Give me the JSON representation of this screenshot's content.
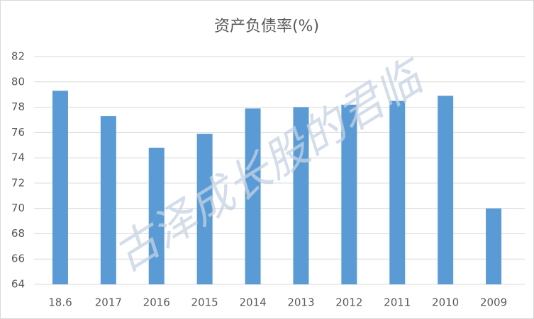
{
  "chart_data": {
    "type": "bar",
    "title": "资产负债率(%)",
    "categories": [
      "18.6",
      "2017",
      "2016",
      "2015",
      "2014",
      "2013",
      "2012",
      "2011",
      "2010",
      "2009"
    ],
    "values": [
      79.3,
      77.3,
      74.8,
      75.9,
      77.9,
      78.0,
      78.2,
      78.5,
      78.9,
      70.0
    ],
    "color": "#5b9bd5",
    "ylim": [
      64,
      82
    ],
    "yticks": [
      64,
      66,
      68,
      70,
      72,
      74,
      76,
      78,
      80,
      82
    ],
    "grid": true,
    "watermark": "古泽成长股的君临"
  }
}
